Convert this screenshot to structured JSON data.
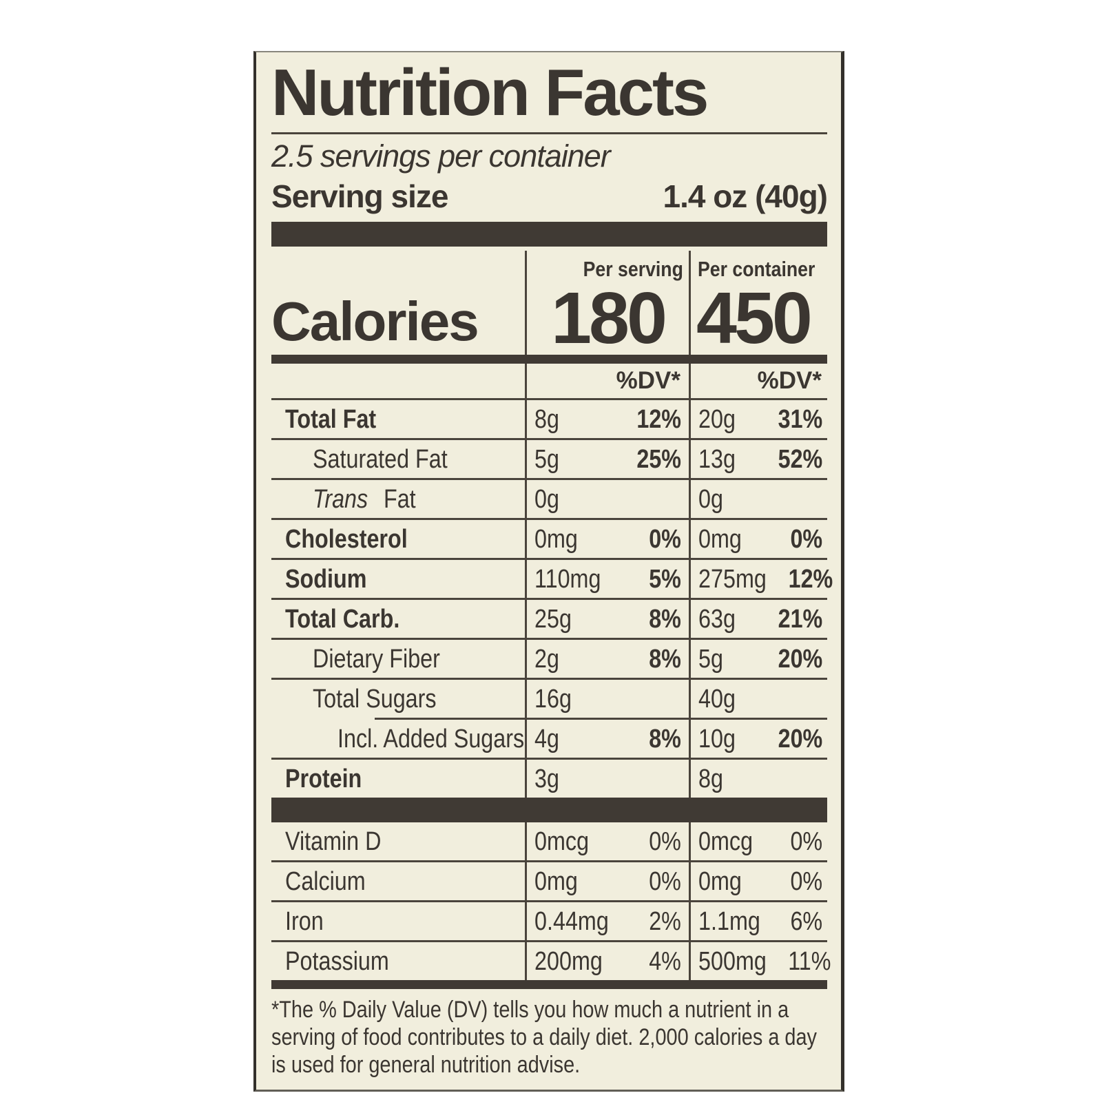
{
  "label": {
    "title": "Nutrition Facts",
    "servings_per_container": "2.5 servings per container",
    "serving_size_label": "Serving size",
    "serving_size_value": "1.4 oz (40g)",
    "calories_label": "Calories",
    "per_serving_header": "Per serving",
    "per_container_header": "Per container",
    "calories_per_serving": "180",
    "calories_per_container": "450",
    "dv_header": "%DV*",
    "rows": [
      {
        "name": "Total Fat",
        "serving_amount": "8g",
        "serving_dv": "12%",
        "container_amount": "20g",
        "container_dv": "31%"
      },
      {
        "name": "Saturated Fat",
        "serving_amount": "5g",
        "serving_dv": "25%",
        "container_amount": "13g",
        "container_dv": "52%"
      },
      {
        "name_italic": "Trans",
        "name_rest": " Fat",
        "serving_amount": "0g",
        "serving_dv": "",
        "container_amount": "0g",
        "container_dv": ""
      },
      {
        "name": "Cholesterol",
        "serving_amount": "0mg",
        "serving_dv": "0%",
        "container_amount": "0mg",
        "container_dv": "0%"
      },
      {
        "name": "Sodium",
        "serving_amount": "110mg",
        "serving_dv": "5%",
        "container_amount": "275mg",
        "container_dv": "12%"
      },
      {
        "name": "Total Carb.",
        "serving_amount": "25g",
        "serving_dv": "8%",
        "container_amount": "63g",
        "container_dv": "21%"
      },
      {
        "name": "Dietary Fiber",
        "serving_amount": "2g",
        "serving_dv": "8%",
        "container_amount": "5g",
        "container_dv": "20%"
      },
      {
        "name": "Total Sugars",
        "serving_amount": "16g",
        "serving_dv": "",
        "container_amount": "40g",
        "container_dv": ""
      },
      {
        "name": "Incl. Added Sugars",
        "serving_amount": "4g",
        "serving_dv": "8%",
        "container_amount": "10g",
        "container_dv": "20%"
      },
      {
        "name": "Protein",
        "serving_amount": "3g",
        "serving_dv": "",
        "container_amount": "8g",
        "container_dv": ""
      }
    ],
    "micronutrients": [
      {
        "name": "Vitamin D",
        "serving_amount": "0mcg",
        "serving_dv": "0%",
        "container_amount": "0mcg",
        "container_dv": "0%"
      },
      {
        "name": "Calcium",
        "serving_amount": "0mg",
        "serving_dv": "0%",
        "container_amount": "0mg",
        "container_dv": "0%"
      },
      {
        "name": "Iron",
        "serving_amount": "0.44mg",
        "serving_dv": "2%",
        "container_amount": "1.1mg",
        "container_dv": "6%"
      },
      {
        "name": "Potassium",
        "serving_amount": "200mg",
        "serving_dv": "4%",
        "container_amount": "500mg",
        "container_dv": "11%"
      }
    ],
    "footnote": "*The % Daily Value (DV) tells you how much a nutrient in a serving of food contributes to a daily diet. 2,000 calories a day is used for general nutrition advise.",
    "colors": {
      "background": "#f1eedd",
      "ink": "#3b3631",
      "bar": "#403a34"
    }
  }
}
